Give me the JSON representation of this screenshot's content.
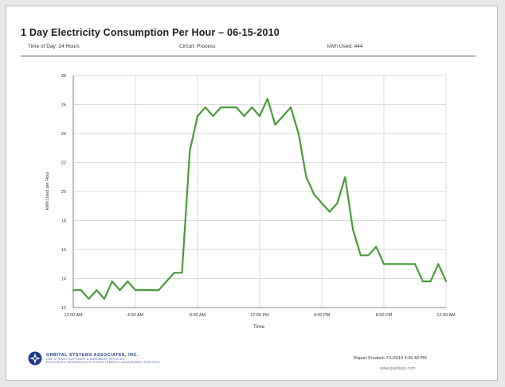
{
  "report": {
    "title": "1 Day Electricity Consumption Per Hour –  06-15-2010",
    "time_of_day": "Time of Day: 24 Hours",
    "circuit": "Circuit: Process",
    "kwh_used": "kWh Used: 444"
  },
  "footer": {
    "company_name": "ORBITAL SYSTEMS ASSOCIATES, INC.",
    "company_tagline": "ONE  &  PENNY  SOFTWARE  &  HARDWARE  SERVICES",
    "company_line": "RESOURCES  INFORMATION  SYSTEMS  |  ENERGY  MANAGEMENT  SERVICES",
    "report_created": "Report Created: 7/1/2010 4:36:49 PM",
    "website": "www.ipaddays.com"
  },
  "colors": {
    "line": "#4a9a3a",
    "grid": "#d0d0d0",
    "axis": "#666666"
  },
  "chart_data": {
    "type": "line",
    "title": "",
    "xlabel": "Time",
    "ylabel": "kWh Used per Hour",
    "ylim": [
      12,
      28
    ],
    "xlim": [
      0,
      24
    ],
    "grid": true,
    "y_ticks": [
      12,
      14,
      16,
      18,
      20,
      22,
      24,
      26,
      28
    ],
    "x_ticks": [
      {
        "x": 0,
        "label": "12:00 AM"
      },
      {
        "x": 4,
        "label": "4:00 AM"
      },
      {
        "x": 8,
        "label": "8:00 AM"
      },
      {
        "x": 12,
        "label": "12:00 PM"
      },
      {
        "x": 16,
        "label": "4:00 PM"
      },
      {
        "x": 20,
        "label": "8:00 PM"
      },
      {
        "x": 24,
        "label": "12:00 AM"
      }
    ],
    "series": [
      {
        "x": [
          0,
          0.5,
          1,
          1.5,
          2,
          2.5,
          3,
          3.5,
          4,
          4.5,
          5,
          5.5,
          6,
          6.5,
          7,
          7.5,
          8,
          8.5,
          9,
          9.5,
          10,
          10.5,
          11,
          11.5,
          12,
          12.5,
          13,
          13.5,
          14,
          14.5,
          15,
          15.5,
          16,
          16.5,
          17,
          17.5,
          18,
          18.5,
          19,
          19.5,
          20,
          20.5,
          21,
          21.5,
          22,
          22.5,
          23,
          23.5,
          24
        ],
        "y": [
          13.2,
          13.2,
          12.6,
          13.2,
          12.6,
          13.8,
          13.2,
          13.8,
          13.2,
          13.2,
          13.2,
          13.2,
          13.8,
          14.4,
          14.4,
          22.8,
          25.2,
          25.8,
          25.2,
          25.8,
          25.8,
          25.8,
          25.2,
          25.8,
          25.2,
          26.4,
          24.6,
          25.2,
          25.8,
          24.0,
          21.0,
          19.8,
          19.2,
          18.6,
          19.2,
          21.0,
          17.4,
          15.6,
          15.6,
          16.2,
          15.0,
          15.0,
          15.0,
          15.0,
          15.0,
          13.8,
          13.8,
          15.0,
          13.8
        ]
      }
    ]
  }
}
